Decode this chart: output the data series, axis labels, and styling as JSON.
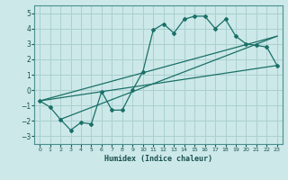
{
  "title": "",
  "xlabel": "Humidex (Indice chaleur)",
  "ylabel": "",
  "bg_color": "#cce8e8",
  "grid_color": "#aad0d0",
  "line_color": "#1a7068",
  "xlim": [
    -0.5,
    23.5
  ],
  "ylim": [
    -3.5,
    5.5
  ],
  "xticks": [
    0,
    1,
    2,
    3,
    4,
    5,
    6,
    7,
    8,
    9,
    10,
    11,
    12,
    13,
    14,
    15,
    16,
    17,
    18,
    19,
    20,
    21,
    22,
    23
  ],
  "yticks": [
    -3,
    -2,
    -1,
    0,
    1,
    2,
    3,
    4,
    5
  ],
  "main_line_x": [
    0,
    1,
    2,
    3,
    4,
    5,
    6,
    7,
    8,
    9,
    10,
    11,
    12,
    13,
    14,
    15,
    16,
    17,
    18,
    19,
    20,
    21,
    22,
    23
  ],
  "main_line_y": [
    -0.7,
    -1.1,
    -1.9,
    -2.6,
    -2.1,
    -2.2,
    -0.1,
    -1.3,
    -1.3,
    0.0,
    1.2,
    3.9,
    4.3,
    3.7,
    4.6,
    4.8,
    4.8,
    4.0,
    4.6,
    3.5,
    3.0,
    2.9,
    2.8,
    1.6
  ],
  "line1_x": [
    0,
    23
  ],
  "line1_y": [
    -0.7,
    1.6
  ],
  "line2_x": [
    0,
    23
  ],
  "line2_y": [
    -0.7,
    3.5
  ],
  "line3_x": [
    2,
    23
  ],
  "line3_y": [
    -1.9,
    3.5
  ]
}
